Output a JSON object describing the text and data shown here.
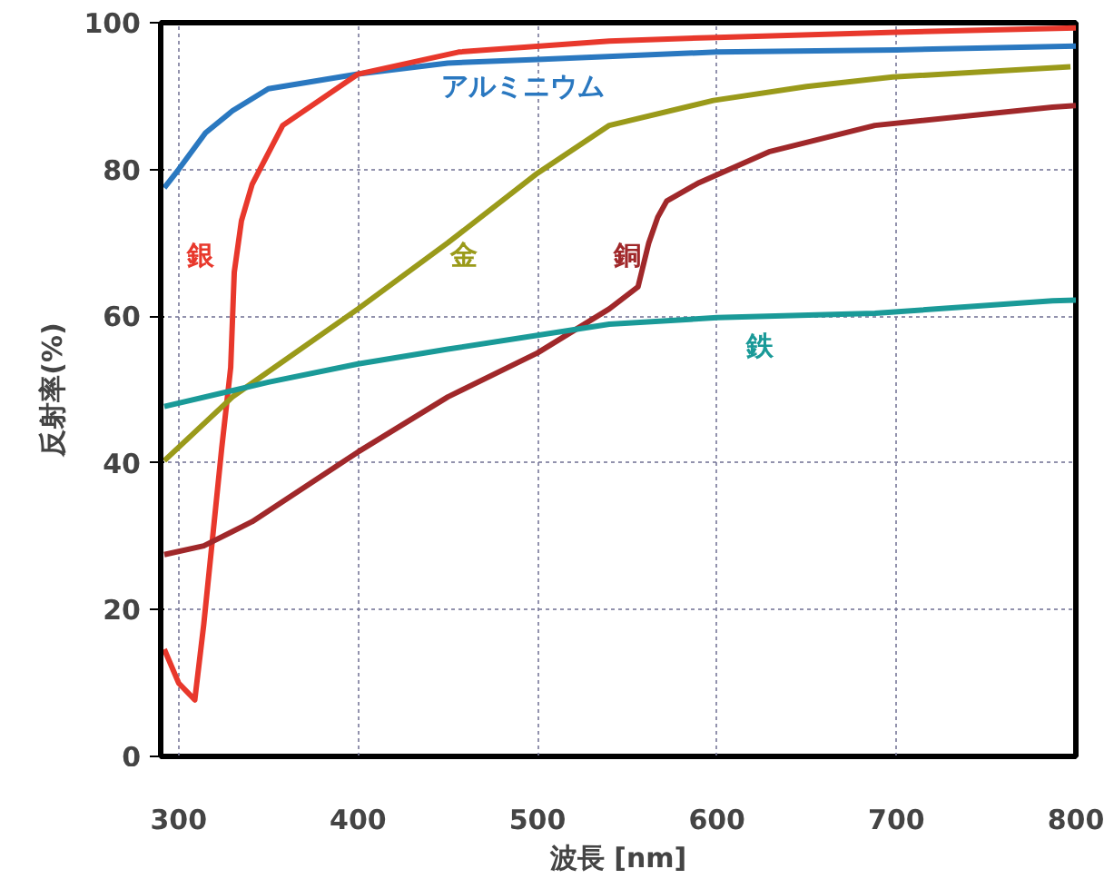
{
  "chart_data": {
    "type": "line",
    "xlabel": "波長 [nm]",
    "ylabel": "反射率(%)",
    "xlim": [
      290,
      800
    ],
    "ylim": [
      0,
      100
    ],
    "xticks": [
      300,
      400,
      500,
      600,
      700,
      800
    ],
    "yticks": [
      0,
      20,
      40,
      60,
      80,
      100
    ],
    "grid": true,
    "line_style": "solid",
    "marker": "none",
    "series": [
      {
        "name": "アルミニウム",
        "color": "#2a78c0",
        "x": [
          292,
          300,
          315,
          330,
          350,
          400,
          450,
          500,
          600,
          700,
          800
        ],
        "values": [
          77.5,
          80,
          85,
          88,
          91,
          93,
          94.5,
          95,
          96,
          96.3,
          96.8
        ]
      },
      {
        "name": "銀",
        "color": "#e8382c",
        "x": [
          292,
          300,
          309,
          314,
          319,
          324,
          329,
          331,
          335,
          341,
          358,
          400,
          456,
          540,
          600,
          700,
          800
        ],
        "values": [
          14.6,
          10,
          7.7,
          18,
          30,
          42,
          53,
          66,
          73,
          78,
          86,
          93,
          96,
          97.5,
          98,
          98.7,
          99.3
        ]
      },
      {
        "name": "金",
        "color": "#9a9a1a",
        "x": [
          292,
          330,
          400,
          450,
          500,
          540,
          598,
          650,
          698,
          797
        ],
        "values": [
          40.3,
          49,
          61,
          70,
          79.5,
          86,
          89.4,
          91.3,
          92.6,
          94
        ]
      },
      {
        "name": "銅",
        "color": "#a0282a",
        "x": [
          292,
          314,
          341,
          400,
          450,
          500,
          540,
          556,
          562,
          567,
          572,
          590,
          629,
          688,
          787,
          800
        ],
        "values": [
          27.5,
          28.7,
          32,
          41.5,
          49,
          55,
          61,
          64,
          70,
          73.5,
          75.7,
          78.2,
          82.4,
          86,
          88.5,
          88.7
        ]
      },
      {
        "name": "鉄",
        "color": "#1a9a98",
        "x": [
          292,
          350,
          400,
          450,
          540,
          600,
          688,
          787,
          800
        ],
        "values": [
          47.7,
          51,
          53.5,
          55.5,
          58.9,
          59.8,
          60.4,
          62.1,
          62.2
        ]
      }
    ]
  }
}
